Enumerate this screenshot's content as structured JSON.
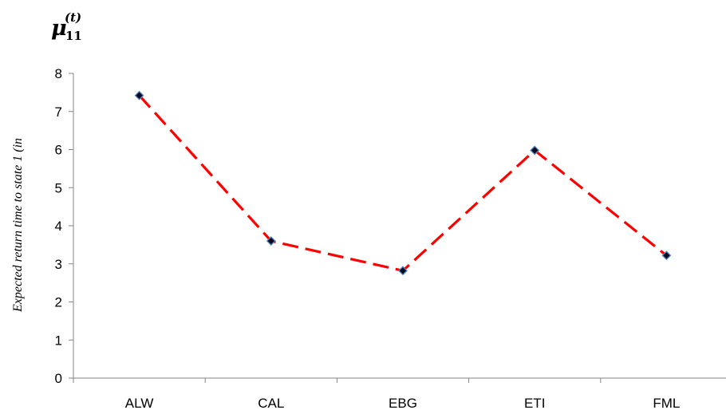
{
  "chart_data": {
    "type": "line",
    "corner_label": {
      "symbol": "μ",
      "subscript": "11",
      "superscript": "(t)"
    },
    "ylabel": "Expected return time to state 1 (in",
    "categories": [
      "ALW",
      "CAL",
      "EBG",
      "ETI",
      "FML"
    ],
    "series": [
      {
        "values": [
          7.42,
          3.6,
          2.82,
          5.98,
          3.22
        ]
      }
    ],
    "ylim": [
      0,
      8
    ],
    "yticks": [
      "0",
      "1",
      "2",
      "3",
      "4",
      "5",
      "6",
      "7",
      "8"
    ],
    "grid": false,
    "legend": "none",
    "colors": {
      "line": "#ff0000",
      "marker_fill": "#0a0a1e",
      "marker_stroke": "#4f81bd",
      "axis": "#868686"
    }
  }
}
